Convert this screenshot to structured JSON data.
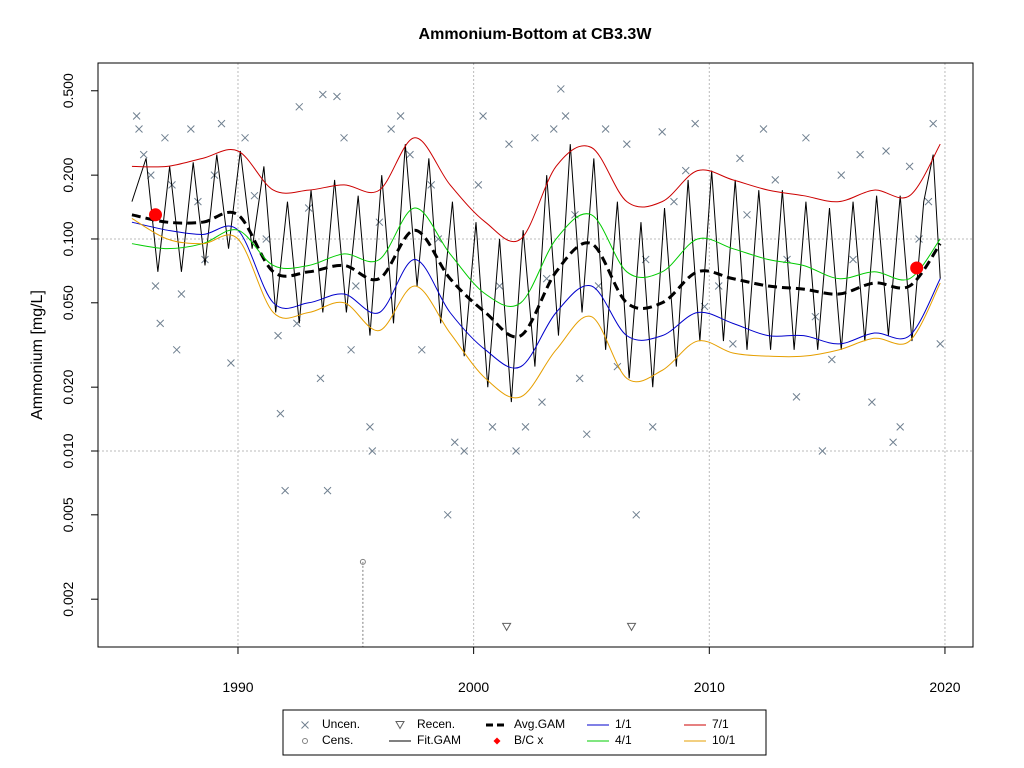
{
  "chart_data": {
    "type": "line",
    "title": "Ammonium-Bottom at CB3.3W",
    "ylabel": "Ammonium [mg/L]",
    "log_y": true,
    "xlim": [
      1984.06,
      2021.19
    ],
    "ylim": [
      0.00119,
      0.676
    ],
    "xticks": [
      1990,
      2000,
      2010,
      2020
    ],
    "yticks": [
      0.002,
      0.005,
      {
        "value": 0.01,
        "label": "0.010"
      },
      {
        "value": 0.02,
        "label": "0.020"
      },
      {
        "value": 0.05,
        "label": "0.050"
      },
      {
        "value": 0.1,
        "label": "0.100"
      },
      {
        "value": 0.2,
        "label": "0.200"
      },
      {
        "value": 0.5,
        "label": "0.500"
      }
    ],
    "x_grid": [
      1990,
      2000,
      2010,
      2020
    ],
    "y_grid": [
      0.01,
      0.1
    ],
    "legend": "bottom",
    "series": [
      {
        "name": "Uncen.",
        "kind": "x-marker",
        "color": "#708090",
        "x": [
          1985.7,
          1985.8,
          1986.0,
          1986.3,
          1986.5,
          1986.7,
          1986.9,
          1987.2,
          1987.4,
          1987.6,
          1988.0,
          1988.3,
          1988.6,
          1989.0,
          1989.3,
          1989.7,
          1990.3,
          1990.7,
          1991.2,
          1991.7,
          1991.8,
          1992.0,
          1992.5,
          1992.6,
          1993.0,
          1993.5,
          1993.6,
          1993.8,
          1994.2,
          1994.5,
          1994.8,
          1995.0,
          1995.6,
          1995.7,
          1996.0,
          1996.5,
          1996.9,
          1997.3,
          1997.8,
          1998.2,
          1998.5,
          1998.9,
          1999.2,
          1999.6,
          2000.2,
          2000.4,
          2000.8,
          2001.1,
          2001.5,
          2001.8,
          2002.2,
          2002.6,
          2002.9,
          2003.1,
          2003.4,
          2003.7,
          2003.9,
          2004.3,
          2004.5,
          2004.8,
          2005.3,
          2005.6,
          2006.1,
          2006.5,
          2006.9,
          2007.3,
          2007.6,
          2008.0,
          2008.5,
          2009.0,
          2009.4,
          2009.8,
          2010.4,
          2011.0,
          2011.3,
          2011.6,
          2012.3,
          2012.8,
          2013.3,
          2013.7,
          2014.1,
          2014.5,
          2014.8,
          2015.2,
          2015.6,
          2016.1,
          2016.4,
          2016.9,
          2017.5,
          2017.8,
          2018.1,
          2018.5,
          2018.9,
          2019.3,
          2019.5,
          2019.8
        ],
        "values": [
          0.38,
          0.33,
          0.25,
          0.2,
          0.06,
          0.04,
          0.3,
          0.18,
          0.03,
          0.055,
          0.33,
          0.15,
          0.08,
          0.2,
          0.35,
          0.026,
          0.3,
          0.16,
          0.1,
          0.035,
          0.015,
          0.0065,
          0.04,
          0.42,
          0.14,
          0.022,
          0.48,
          0.0065,
          0.47,
          0.3,
          0.03,
          0.06,
          0.013,
          0.01,
          0.12,
          0.33,
          0.38,
          0.25,
          0.03,
          0.18,
          0.1,
          0.005,
          0.011,
          0.01,
          0.18,
          0.38,
          0.013,
          0.06,
          0.28,
          0.01,
          0.013,
          0.3,
          0.017,
          0.065,
          0.33,
          0.51,
          0.38,
          0.13,
          0.022,
          0.012,
          0.06,
          0.33,
          0.025,
          0.28,
          0.005,
          0.08,
          0.013,
          0.32,
          0.15,
          0.21,
          0.35,
          0.048,
          0.06,
          0.032,
          0.24,
          0.13,
          0.33,
          0.19,
          0.08,
          0.018,
          0.3,
          0.043,
          0.01,
          0.027,
          0.2,
          0.08,
          0.25,
          0.017,
          0.26,
          0.011,
          0.013,
          0.22,
          0.1,
          0.15,
          0.35,
          0.032
        ]
      },
      {
        "name": "Cens.",
        "kind": "circle-marker",
        "color": "#808080",
        "x": [
          1995.3
        ],
        "values": [
          0.003
        ]
      },
      {
        "name": "Recen.",
        "kind": "triangle-marker",
        "color": "#606060",
        "x": [
          2001.4,
          2006.7
        ],
        "values": [
          0.00148,
          0.00148
        ]
      },
      {
        "name": "Fit.GAM",
        "kind": "line",
        "color": "#000000",
        "x": [
          1985.5,
          1986.1,
          1986.6,
          1987.1,
          1987.6,
          1988.1,
          1988.6,
          1989.1,
          1989.6,
          1990.1,
          1990.6,
          1991.1,
          1991.6,
          1992.1,
          1992.6,
          1993.1,
          1993.6,
          1994.1,
          1994.6,
          1995.1,
          1995.6,
          1996.1,
          1996.6,
          1997.1,
          1997.6,
          1998.1,
          1998.6,
          1999.1,
          1999.6,
          2000.1,
          2000.6,
          2001.1,
          2001.6,
          2002.1,
          2002.6,
          2003.1,
          2003.6,
          2004.1,
          2004.6,
          2005.1,
          2005.6,
          2006.1,
          2006.6,
          2007.1,
          2007.6,
          2008.1,
          2008.6,
          2009.1,
          2009.6,
          2010.1,
          2010.6,
          2011.1,
          2011.6,
          2012.1,
          2012.6,
          2013.1,
          2013.6,
          2014.1,
          2014.6,
          2015.1,
          2015.6,
          2016.1,
          2016.6,
          2017.1,
          2017.6,
          2018.1,
          2018.6,
          2019.1,
          2019.5,
          2019.8
        ],
        "values": [
          0.15,
          0.24,
          0.07,
          0.22,
          0.07,
          0.23,
          0.075,
          0.25,
          0.09,
          0.26,
          0.09,
          0.22,
          0.045,
          0.15,
          0.04,
          0.17,
          0.045,
          0.19,
          0.045,
          0.16,
          0.035,
          0.2,
          0.04,
          0.28,
          0.06,
          0.24,
          0.04,
          0.15,
          0.028,
          0.12,
          0.02,
          0.1,
          0.017,
          0.11,
          0.025,
          0.2,
          0.035,
          0.28,
          0.045,
          0.24,
          0.03,
          0.15,
          0.022,
          0.12,
          0.02,
          0.14,
          0.025,
          0.19,
          0.033,
          0.21,
          0.033,
          0.19,
          0.03,
          0.17,
          0.03,
          0.17,
          0.03,
          0.15,
          0.03,
          0.14,
          0.03,
          0.15,
          0.033,
          0.16,
          0.035,
          0.16,
          0.033,
          0.15,
          0.25,
          0.065
        ]
      },
      {
        "name": "Avg.GAM",
        "kind": "dashed-line",
        "color": "#000000",
        "x": [
          1985.5,
          1987,
          1988.5,
          1990,
          1991.5,
          1993,
          1994.5,
          1996,
          1997.5,
          1999,
          2000.5,
          2002,
          2003.5,
          2005,
          2006.5,
          2008,
          2009.5,
          2011,
          2012.5,
          2014,
          2015.5,
          2017,
          2018.5,
          2019.8
        ],
        "values": [
          0.13,
          0.12,
          0.12,
          0.13,
          0.07,
          0.07,
          0.075,
          0.065,
          0.11,
          0.065,
          0.045,
          0.035,
          0.07,
          0.095,
          0.05,
          0.05,
          0.07,
          0.065,
          0.06,
          0.058,
          0.055,
          0.062,
          0.06,
          0.095
        ]
      },
      {
        "name": "B/C x",
        "kind": "dot-marker",
        "color": "#ff0000",
        "x": [
          1986.5,
          2018.8
        ],
        "values": [
          0.13,
          0.073
        ]
      },
      {
        "name": "1/1",
        "kind": "smooth-line",
        "color": "#0000cc",
        "x": [
          1985.5,
          1987,
          1988.5,
          1990,
          1991.5,
          1993,
          1994.5,
          1996,
          1997.5,
          1999,
          2000.5,
          2002,
          2003.5,
          2005,
          2006.5,
          2008,
          2009.5,
          2011,
          2012.5,
          2014,
          2015.5,
          2017,
          2018.5,
          2019.8
        ],
        "values": [
          0.12,
          0.11,
          0.105,
          0.11,
          0.05,
          0.05,
          0.055,
          0.045,
          0.08,
          0.045,
          0.03,
          0.025,
          0.045,
          0.06,
          0.035,
          0.035,
          0.045,
          0.04,
          0.035,
          0.035,
          0.032,
          0.036,
          0.035,
          0.065
        ]
      },
      {
        "name": "4/1",
        "kind": "smooth-line",
        "color": "#00cc00",
        "x": [
          1985.5,
          1987,
          1988.5,
          1990,
          1991.5,
          1993,
          1994.5,
          1996,
          1997.5,
          1999,
          2000.5,
          2002,
          2003.5,
          2005,
          2006.5,
          2008,
          2009.5,
          2011,
          2012.5,
          2014,
          2015.5,
          2017,
          2018.5,
          2019.8
        ],
        "values": [
          0.095,
          0.09,
          0.095,
          0.11,
          0.075,
          0.075,
          0.085,
          0.08,
          0.14,
          0.085,
          0.055,
          0.05,
          0.1,
          0.13,
          0.07,
          0.07,
          0.1,
          0.09,
          0.08,
          0.075,
          0.065,
          0.07,
          0.065,
          0.1
        ]
      },
      {
        "name": "7/1",
        "kind": "smooth-line",
        "color": "#cc0000",
        "x": [
          1985.5,
          1987,
          1988.5,
          1990,
          1991.5,
          1993,
          1994.5,
          1996,
          1997.5,
          1999,
          2000.5,
          2002,
          2003.5,
          2005,
          2006.5,
          2008,
          2009.5,
          2011,
          2012.5,
          2014,
          2015.5,
          2017,
          2018.5,
          2019.8
        ],
        "values": [
          0.22,
          0.22,
          0.24,
          0.26,
          0.17,
          0.17,
          0.18,
          0.17,
          0.3,
          0.18,
          0.12,
          0.1,
          0.22,
          0.27,
          0.15,
          0.15,
          0.21,
          0.19,
          0.17,
          0.16,
          0.15,
          0.17,
          0.16,
          0.28
        ]
      },
      {
        "name": "10/1",
        "kind": "smooth-line",
        "color": "#e69f00",
        "x": [
          1985.5,
          1987,
          1988.5,
          1990,
          1991.5,
          1993,
          1994.5,
          1996,
          1997.5,
          1999,
          2000.5,
          2002,
          2003.5,
          2005,
          2006.5,
          2008,
          2009.5,
          2011,
          2012.5,
          2014,
          2015.5,
          2017,
          2018.5,
          2019.8
        ],
        "values": [
          0.125,
          0.1,
          0.095,
          0.1,
          0.045,
          0.045,
          0.05,
          0.037,
          0.06,
          0.036,
          0.022,
          0.018,
          0.03,
          0.043,
          0.022,
          0.024,
          0.033,
          0.029,
          0.028,
          0.028,
          0.03,
          0.034,
          0.033,
          0.062
        ]
      }
    ]
  }
}
